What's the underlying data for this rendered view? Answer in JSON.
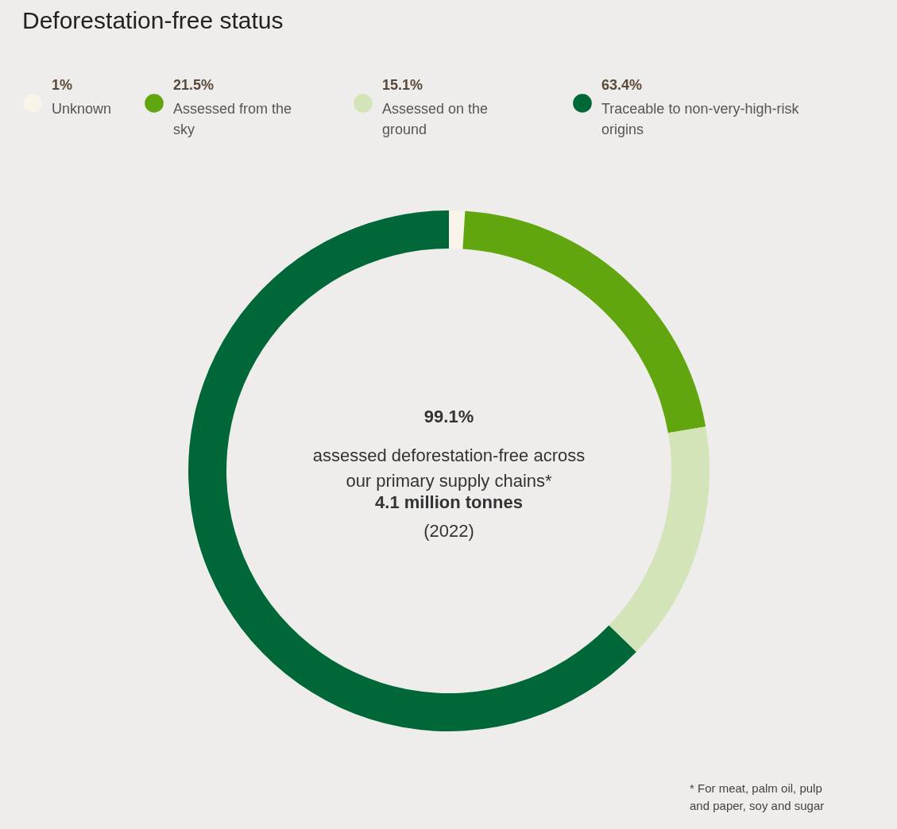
{
  "chart_data": {
    "type": "donut",
    "title": "Deforestation-free status",
    "categories": [
      "Unknown",
      "Assessed from the sky",
      "Assessed on the ground",
      "Traceable to non-very-high-risk origins"
    ],
    "values": [
      1,
      21.5,
      15.1,
      63.4
    ],
    "colors": [
      "#f8f4ea",
      "#62a60f",
      "#d2e4b8",
      "#006838"
    ],
    "value_labels": [
      "1%",
      "21.5%",
      "15.1%",
      "63.4%"
    ],
    "legend": "top",
    "annotations": [
      "99.1%",
      "assessed deforestation-free across our primary supply chains*",
      "4.1 million tonnes",
      "(2022)",
      "* For meat, palm oil, pulp and paper, soy and sugar"
    ]
  }
}
